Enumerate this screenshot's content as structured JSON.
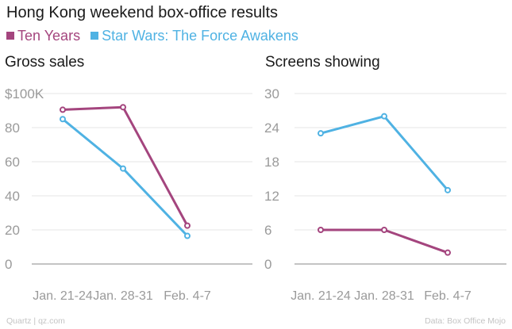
{
  "title": "Hong Kong weekend box-office results",
  "legend": [
    {
      "label": "Ten Years",
      "color": "#a4457e"
    },
    {
      "label": "Star Wars: The Force Awakens",
      "color": "#4fb2e3"
    }
  ],
  "chart_data": [
    {
      "type": "line",
      "title": "Gross sales",
      "categories": [
        "Jan. 21-24",
        "Jan. 28-31",
        "Feb. 4-7"
      ],
      "ylim": [
        0,
        100
      ],
      "yticks": [
        "0",
        "20",
        "40",
        "60",
        "80",
        "$100K"
      ],
      "ytick_values": [
        0,
        20,
        40,
        60,
        80,
        100
      ],
      "grid": true,
      "series": [
        {
          "name": "Ten Years",
          "color": "#a4457e",
          "values": [
            90.5,
            92,
            22.5
          ]
        },
        {
          "name": "Star Wars: The Force Awakens",
          "color": "#4fb2e3",
          "values": [
            85,
            56,
            16.5
          ]
        }
      ]
    },
    {
      "type": "line",
      "title": "Screens showing",
      "categories": [
        "Jan. 21-24",
        "Jan. 28-31",
        "Feb. 4-7"
      ],
      "ylim": [
        0,
        30
      ],
      "yticks": [
        "0",
        "6",
        "12",
        "18",
        "24",
        "30"
      ],
      "ytick_values": [
        0,
        6,
        12,
        18,
        24,
        30
      ],
      "grid": true,
      "series": [
        {
          "name": "Ten Years",
          "color": "#a4457e",
          "values": [
            6,
            6,
            2
          ]
        },
        {
          "name": "Star Wars: The Force Awakens",
          "color": "#4fb2e3",
          "values": [
            23,
            26,
            13
          ]
        }
      ]
    }
  ],
  "footer": {
    "source_left": "Quartz | qz.com",
    "source_right": "Data: Box Office Mojo"
  }
}
